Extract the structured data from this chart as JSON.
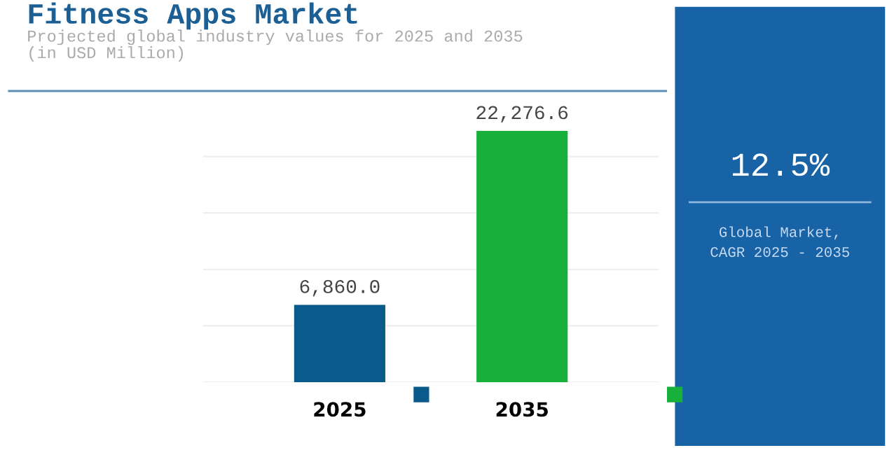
{
  "chart_data": [
    {
      "type": "bar",
      "title": "Fitness Apps Market",
      "subtitle": "Projected global industry values for 2025 and 2035\n(in USD Million)",
      "categories": [
        "2025",
        "2035"
      ],
      "colors": [
        "#0b5a8c",
        "#16b03a"
      ],
      "values": [
        6860.0,
        22276.6
      ],
      "value_labels": [
        "6,860.0",
        "22,276.6"
      ],
      "yticks": [
        {
          "value": 0,
          "label": null
        },
        {
          "value": 5000,
          "label": null
        },
        {
          "value": 10000,
          "label": null
        },
        {
          "value": 15000,
          "label": null
        },
        {
          "value": 20000,
          "label": null
        }
      ],
      "grid": "y",
      "tick_labels": "x"
    },
    {
      "type": "other",
      "title": "12.5%",
      "subtitle": "Global Market,\nCAGR 2025 - 2035"
    }
  ]
}
